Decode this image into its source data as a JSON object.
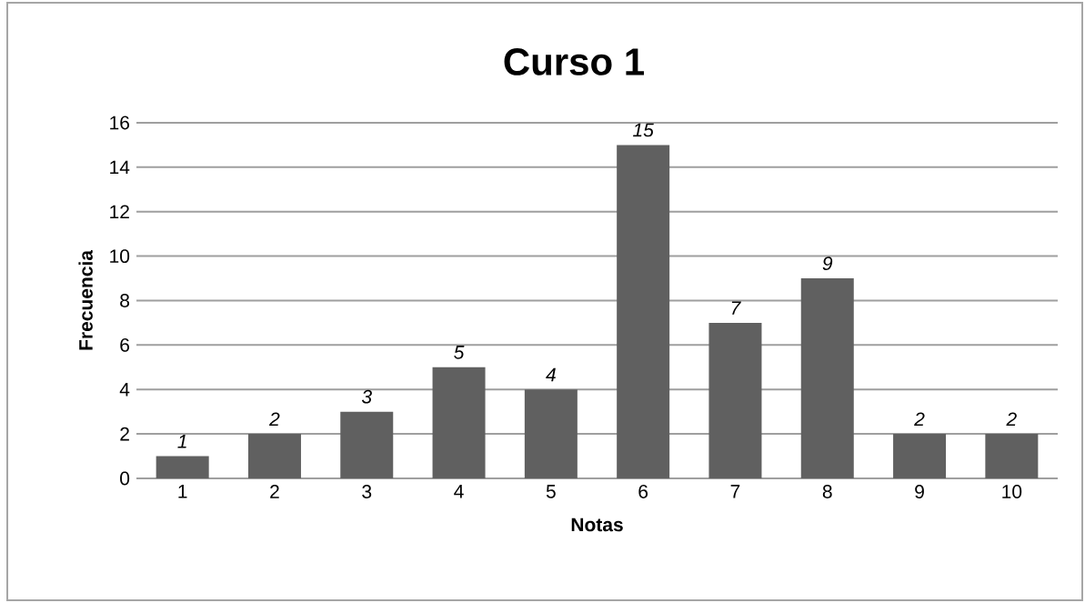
{
  "chart_data": {
    "type": "bar",
    "title": "Curso 1",
    "xlabel": "Notas",
    "ylabel": "Frecuencia",
    "categories": [
      "1",
      "2",
      "3",
      "4",
      "5",
      "6",
      "7",
      "8",
      "9",
      "10"
    ],
    "values": [
      1,
      2,
      3,
      5,
      4,
      15,
      7,
      9,
      2,
      2
    ],
    "color": "#606060",
    "ylim": [
      0,
      16
    ],
    "yticks": [
      0,
      2,
      4,
      6,
      8,
      10,
      12,
      14,
      16
    ],
    "grid": "y",
    "data_labels": true
  }
}
